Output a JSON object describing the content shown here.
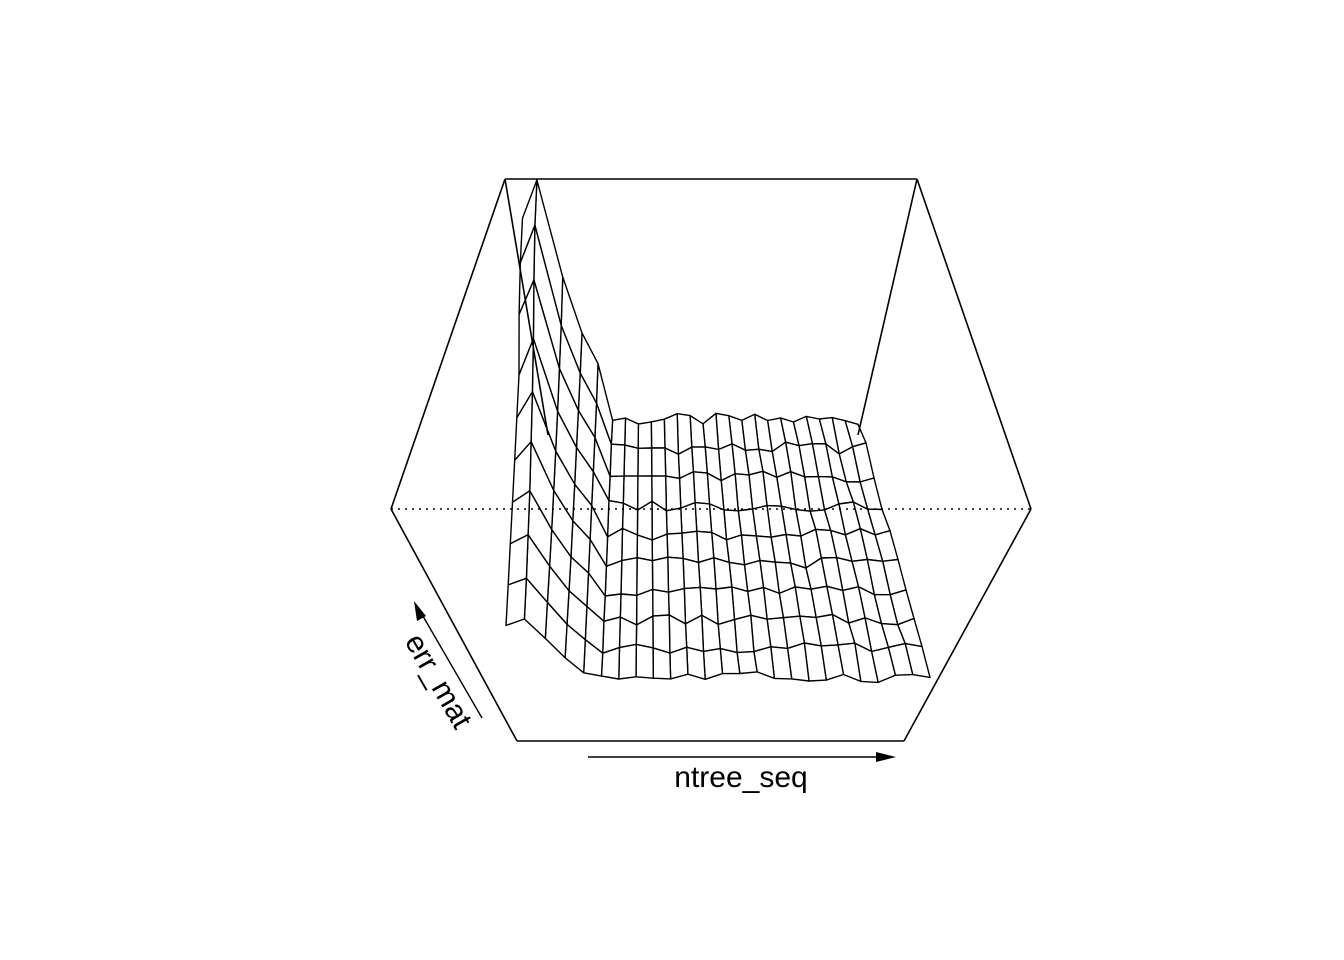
{
  "chart_data": {
    "type": "surface",
    "title": "",
    "xlabel": "ntree_seq",
    "zlabel": "err_mat",
    "ylabel": "",
    "axes_ticks": false,
    "box": true,
    "line_color": "#000000",
    "face_color": "#ffffff",
    "background": "#ffffff",
    "surface": {
      "n_cols": 25,
      "n_rows": 10,
      "description_rows": "depth rows from back to front",
      "row_base_level": [
        0.7,
        0.61,
        0.53,
        0.45,
        0.37,
        0.29,
        0.21,
        0.13,
        0.05,
        0.0
      ],
      "left_spike_heights": [
        [
          0.85,
          1.0,
          0.62,
          0.4,
          0.28
        ],
        [
          0.8,
          0.95,
          0.55,
          0.36,
          0.24
        ],
        [
          0.72,
          0.86,
          0.5,
          0.33,
          0.22
        ],
        [
          0.6,
          0.75,
          0.45,
          0.3,
          0.2
        ],
        [
          0.55,
          0.66,
          0.41,
          0.27,
          0.18
        ],
        [
          0.5,
          0.58,
          0.37,
          0.24,
          0.16
        ],
        [
          0.45,
          0.5,
          0.33,
          0.21,
          0.14
        ],
        [
          0.4,
          0.44,
          0.3,
          0.19,
          0.12
        ],
        [
          0.35,
          0.38,
          0.27,
          0.17,
          0.1
        ],
        [
          0.3,
          0.33,
          0.24,
          0.15,
          0.08
        ]
      ],
      "noise_amplitude": 0.025
    }
  }
}
